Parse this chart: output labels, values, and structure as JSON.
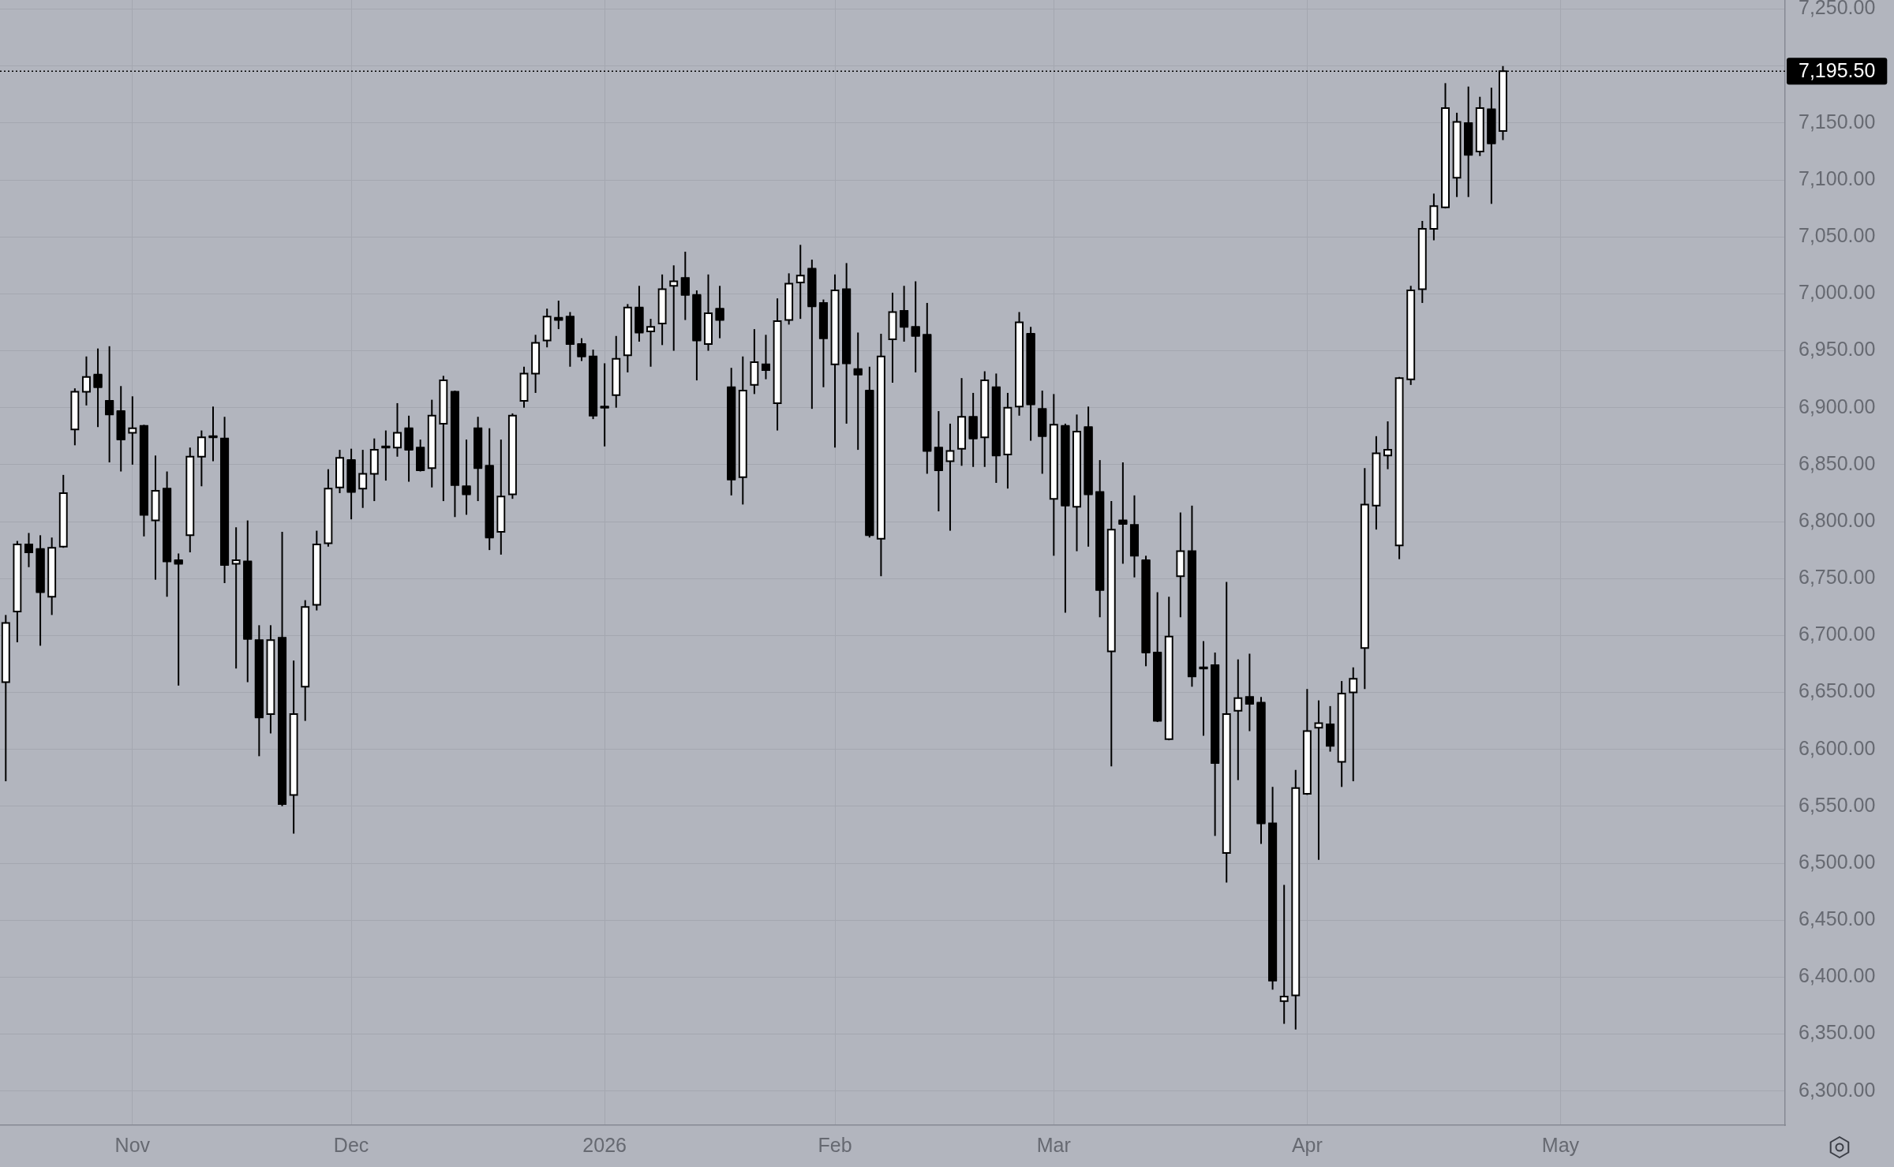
{
  "chart_data": {
    "type": "candlestick",
    "categories": [
      null,
      null,
      null,
      null,
      null,
      null,
      null,
      null,
      null,
      null,
      null,
      "Nov",
      null,
      null,
      null,
      null,
      null,
      null,
      null,
      null,
      null,
      null,
      null,
      null,
      null,
      null,
      null,
      null,
      null,
      null,
      "Dec",
      null,
      null,
      null,
      null,
      null,
      null,
      null,
      null,
      null,
      null,
      null,
      null,
      null,
      null,
      null,
      null,
      null,
      null,
      null,
      null,
      null,
      "2026",
      null,
      null,
      null,
      null,
      null,
      null,
      null,
      null,
      null,
      null,
      null,
      null,
      null,
      null,
      null,
      null,
      null,
      null,
      null,
      "Feb",
      null,
      null,
      null,
      null,
      null,
      null,
      null,
      null,
      null,
      null,
      null,
      null,
      null,
      null,
      null,
      null,
      null,
      null,
      "Mar",
      null,
      null,
      null,
      null,
      null,
      null,
      null,
      null,
      null,
      null,
      null,
      null,
      null,
      null,
      null,
      null,
      null,
      null,
      null,
      null,
      null,
      "Apr",
      null,
      null,
      null,
      null,
      null,
      null,
      null,
      null,
      null,
      null,
      null,
      null,
      null,
      null,
      null,
      null,
      null,
      null,
      null,
      null,
      null,
      "May",
      null,
      null,
      null,
      null,
      null,
      null,
      null,
      null,
      null,
      null,
      null,
      null,
      null,
      null,
      null,
      null,
      null,
      null,
      null
    ],
    "ohlc": [
      [
        6659,
        6718,
        6572,
        6711
      ],
      [
        6721,
        6783,
        6694,
        6780
      ],
      [
        6780,
        6790,
        6760,
        6773
      ],
      [
        6776,
        6788,
        6691,
        6738
      ],
      [
        6734,
        6786,
        6718,
        6777
      ],
      [
        6778,
        6841,
        6777,
        6825
      ],
      [
        6881,
        6917,
        6867,
        6914
      ],
      [
        6914,
        6945,
        6902,
        6927
      ],
      [
        6929,
        6952,
        6883,
        6918
      ],
      [
        6906,
        6954,
        6852,
        6894
      ],
      [
        6897,
        6919,
        6844,
        6872
      ],
      [
        6878,
        6910,
        6850,
        6882
      ],
      [
        6884,
        6885,
        6787,
        6806
      ],
      [
        6801,
        6858,
        6749,
        6827
      ],
      [
        6829,
        6844,
        6734,
        6765
      ],
      [
        6766,
        6772,
        6656,
        6763
      ],
      [
        6788,
        6865,
        6773,
        6857
      ],
      [
        6857,
        6880,
        6831,
        6874
      ],
      [
        6875,
        6901,
        6853,
        6874
      ],
      [
        6873,
        6892,
        6746,
        6762
      ],
      [
        6763,
        6795,
        6671,
        6766
      ],
      [
        6765,
        6801,
        6659,
        6697
      ],
      [
        6696,
        6709,
        6594,
        6628
      ],
      [
        6631,
        6709,
        6614,
        6696
      ],
      [
        6698,
        6791,
        6550,
        6552
      ],
      [
        6560,
        6678,
        6526,
        6631
      ],
      [
        6655,
        6731,
        6625,
        6725
      ],
      [
        6727,
        6792,
        6722,
        6780
      ],
      [
        6781,
        6846,
        6778,
        6829
      ],
      [
        6830,
        6863,
        6825,
        6856
      ],
      [
        6854,
        6864,
        6802,
        6826
      ],
      [
        6829,
        6863,
        6812,
        6842
      ],
      [
        6842,
        6873,
        6818,
        6863
      ],
      [
        6866,
        6880,
        6836,
        6865
      ],
      [
        6865,
        6904,
        6857,
        6878
      ],
      [
        6882,
        6893,
        6835,
        6863
      ],
      [
        6865,
        6872,
        6844,
        6845
      ],
      [
        6847,
        6907,
        6830,
        6893
      ],
      [
        6886,
        6928,
        6818,
        6924
      ],
      [
        6914,
        6915,
        6804,
        6832
      ],
      [
        6831,
        6872,
        6806,
        6824
      ],
      [
        6882,
        6892,
        6818,
        6847
      ],
      [
        6849,
        6882,
        6775,
        6786
      ],
      [
        6791,
        6872,
        6771,
        6822
      ],
      [
        6824,
        6895,
        6820,
        6893
      ],
      [
        6906,
        6936,
        6900,
        6930
      ],
      [
        6930,
        6964,
        6913,
        6957
      ],
      [
        6959,
        6987,
        6953,
        6980
      ],
      [
        6979,
        6994,
        6969,
        6977
      ],
      [
        6980,
        6984,
        6936,
        6956
      ],
      [
        6956,
        6961,
        6941,
        6945
      ],
      [
        6945,
        6951,
        6890,
        6893
      ],
      [
        6901,
        6939,
        6866,
        6900
      ],
      [
        6911,
        6963,
        6900,
        6943
      ],
      [
        6946,
        6991,
        6931,
        6988
      ],
      [
        6988,
        7007,
        6958,
        6966
      ],
      [
        6967,
        6978,
        6936,
        6971
      ],
      [
        6974,
        7017,
        6955,
        7004
      ],
      [
        7007,
        7025,
        6950,
        7011
      ],
      [
        7014,
        7037,
        6977,
        6999
      ],
      [
        6999,
        7003,
        6924,
        6959
      ],
      [
        6956,
        7017,
        6950,
        6983
      ],
      [
        6987,
        7007,
        6961,
        6977
      ],
      [
        6918,
        6935,
        6823,
        6837
      ],
      [
        6839,
        6945,
        6815,
        6915
      ],
      [
        6920,
        6969,
        6912,
        6940
      ],
      [
        6938,
        6964,
        6925,
        6933
      ],
      [
        6904,
        6996,
        6880,
        6976
      ],
      [
        6977,
        7018,
        6973,
        7009
      ],
      [
        7010,
        7043,
        6978,
        7016
      ],
      [
        7022,
        7030,
        6899,
        6989
      ],
      [
        6992,
        6995,
        6918,
        6961
      ],
      [
        6938,
        7017,
        6865,
        7003
      ],
      [
        7004,
        7027,
        6886,
        6939
      ],
      [
        6934,
        6966,
        6863,
        6929
      ],
      [
        6915,
        6936,
        6786,
        6788
      ],
      [
        6785,
        6965,
        6752,
        6945
      ],
      [
        6960,
        7001,
        6922,
        6984
      ],
      [
        6985,
        7007,
        6958,
        6971
      ],
      [
        6971,
        7011,
        6931,
        6963
      ],
      [
        6964,
        6992,
        6842,
        6862
      ],
      [
        6865,
        6897,
        6809,
        6845
      ],
      [
        6853,
        6886,
        6792,
        6862
      ],
      [
        6864,
        6926,
        6849,
        6892
      ],
      [
        6892,
        6913,
        6848,
        6873
      ],
      [
        6874,
        6932,
        6848,
        6924
      ],
      [
        6918,
        6930,
        6834,
        6858
      ],
      [
        6859,
        6913,
        6829,
        6900
      ],
      [
        6901,
        6984,
        6893,
        6975
      ],
      [
        6965,
        6971,
        6871,
        6903
      ],
      [
        6899,
        6915,
        6842,
        6875
      ],
      [
        6820,
        6912,
        6770,
        6885
      ],
      [
        6884,
        6886,
        6720,
        6814
      ],
      [
        6813,
        6894,
        6774,
        6879
      ],
      [
        6883,
        6901,
        6778,
        6824
      ],
      [
        6826,
        6854,
        6716,
        6740
      ],
      [
        6686,
        6818,
        6585,
        6793
      ],
      [
        6801,
        6852,
        6763,
        6798
      ],
      [
        6797,
        6823,
        6751,
        6770
      ],
      [
        6766,
        6770,
        6673,
        6685
      ],
      [
        6685,
        6738,
        6624,
        6625
      ],
      [
        6609,
        6734,
        6608,
        6699
      ],
      [
        6752,
        6808,
        6716,
        6774
      ],
      [
        6774,
        6814,
        6655,
        6664
      ],
      [
        6672,
        6695,
        6612,
        6671
      ],
      [
        6674,
        6685,
        6524,
        6588
      ],
      [
        6509,
        6747,
        6483,
        6631
      ],
      [
        6634,
        6679,
        6573,
        6645
      ],
      [
        6646,
        6684,
        6616,
        6640
      ],
      [
        6641,
        6646,
        6517,
        6535
      ],
      [
        6535,
        6567,
        6389,
        6397
      ],
      [
        6379,
        6481,
        6359,
        6383
      ],
      [
        6384,
        6582,
        6354,
        6566
      ],
      [
        6561,
        6653,
        6560,
        6616
      ],
      [
        6619,
        6643,
        6503,
        6623
      ],
      [
        6622,
        6638,
        6598,
        6603
      ],
      [
        6589,
        6660,
        6567,
        6649
      ],
      [
        6650,
        6672,
        6572,
        6662
      ],
      [
        6689,
        6847,
        6653,
        6815
      ],
      [
        6814,
        6875,
        6793,
        6860
      ],
      [
        6858,
        6888,
        6846,
        6863
      ],
      [
        6779,
        6927,
        6767,
        6926
      ],
      [
        6925,
        7007,
        6920,
        7003
      ],
      [
        7004,
        7064,
        6992,
        7057
      ],
      [
        7057,
        7088,
        7047,
        7077
      ],
      [
        7076,
        7185,
        7075,
        7163
      ],
      [
        7102,
        7159,
        7085,
        7151
      ],
      [
        7150,
        7182,
        7085,
        7122
      ],
      [
        7125,
        7173,
        7121,
        7163
      ],
      [
        7162,
        7181,
        7079,
        7132
      ],
      [
        7143,
        7200,
        7135,
        7195.5
      ],
      null,
      null,
      null,
      null,
      null,
      null,
      null,
      null,
      null,
      null,
      null,
      null,
      null,
      null,
      null,
      null,
      null,
      null,
      null,
      null,
      null,
      null,
      null,
      null
    ],
    "ylim": [
      6270,
      7258
    ],
    "yticks": [
      {
        "value": 6300,
        "label": "6,300.00"
      },
      {
        "value": 6350,
        "label": "6,350.00"
      },
      {
        "value": 6400,
        "label": "6,400.00"
      },
      {
        "value": 6450,
        "label": "6,450.00"
      },
      {
        "value": 6500,
        "label": "6,500.00"
      },
      {
        "value": 6550,
        "label": "6,550.00"
      },
      {
        "value": 6600,
        "label": "6,600.00"
      },
      {
        "value": 6650,
        "label": "6,650.00"
      },
      {
        "value": 6700,
        "label": "6,700.00"
      },
      {
        "value": 6750,
        "label": "6,750.00"
      },
      {
        "value": 6800,
        "label": "6,800.00"
      },
      {
        "value": 6850,
        "label": "6,850.00"
      },
      {
        "value": 6900,
        "label": "6,900.00"
      },
      {
        "value": 6950,
        "label": "6,950.00"
      },
      {
        "value": 7000,
        "label": "7,000.00"
      },
      {
        "value": 7050,
        "label": "7,050.00"
      },
      {
        "value": 7100,
        "label": "7,100.00"
      },
      {
        "value": 7150,
        "label": "7,150.00"
      },
      {
        "value": 7200,
        "label": null
      },
      {
        "value": 7250,
        "label": "7,250.00"
      }
    ],
    "grid": true,
    "ref_lines": [
      {
        "axis": "y",
        "value": 7195.5,
        "label": "7,195.50",
        "line_style": "dotted",
        "color": "#000000"
      }
    ]
  }
}
